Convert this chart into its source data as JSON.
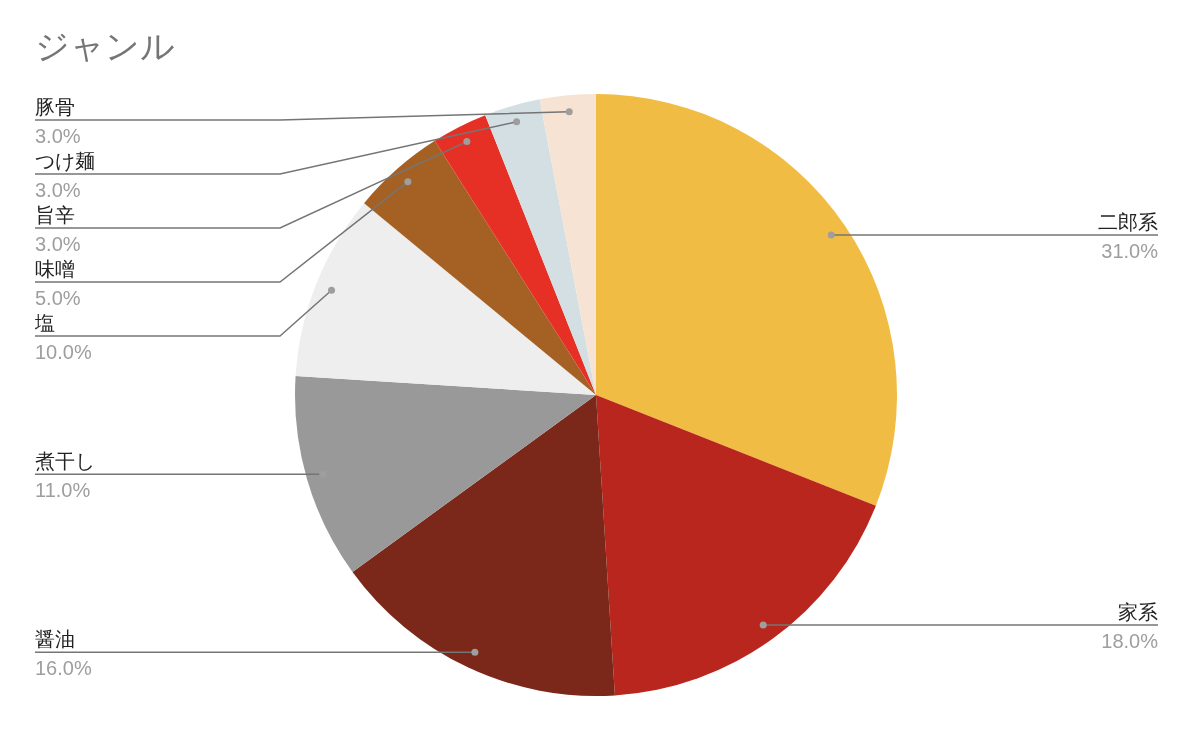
{
  "chart_data": {
    "type": "pie",
    "title": "ジャンル",
    "categories": [
      "二郎系",
      "家系",
      "醤油",
      "煮干し",
      "塩",
      "味噌",
      "旨辛",
      "つけ麺",
      "豚骨"
    ],
    "values": [
      31,
      18,
      16,
      11,
      10,
      5,
      3,
      3,
      3
    ],
    "value_labels": [
      "31.0%",
      "18.0%",
      "16.0%",
      "11.0%",
      "10.0%",
      "5.0%",
      "3.0%",
      "3.0%",
      "3.0%"
    ],
    "colors": [
      "#f1bc43",
      "#b8261e",
      "#7b2719",
      "#999999",
      "#eeeeee",
      "#a56124",
      "#e63026",
      "#d4dfe3",
      "#f7e3d3"
    ]
  }
}
